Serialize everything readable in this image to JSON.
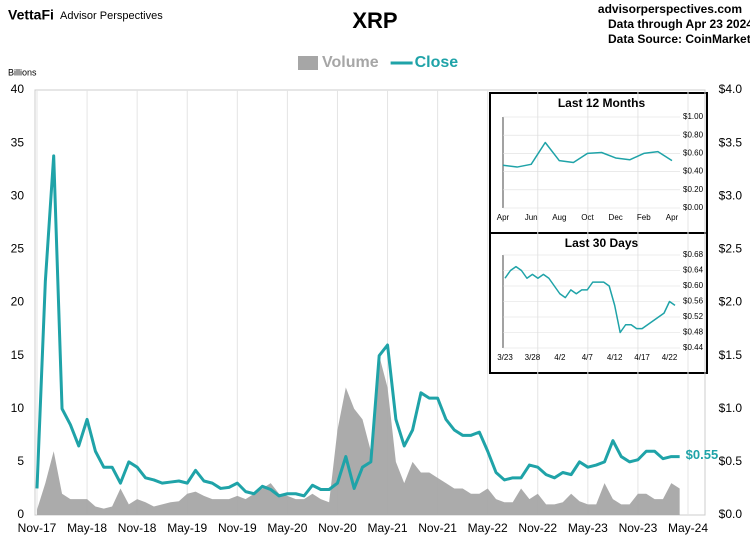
{
  "header": {
    "brand": "VettaFi",
    "brand_sub": "Advisor Perspectives",
    "site": "advisorperspectives.com",
    "data_through": "Data through Apr 23 2024",
    "source": "Data Source: CoinMarketCap"
  },
  "chart_data": [
    {
      "type": "combo",
      "title": "XRP",
      "y_label": "Billions",
      "categories": [
        "Nov-17",
        null,
        null,
        null,
        null,
        null,
        "May-18",
        null,
        null,
        null,
        null,
        null,
        "Nov-18",
        null,
        null,
        null,
        null,
        null,
        "May-19",
        null,
        null,
        null,
        null,
        null,
        "Nov-19",
        null,
        null,
        null,
        null,
        null,
        "May-20",
        null,
        null,
        null,
        null,
        null,
        "Nov-20",
        null,
        null,
        null,
        null,
        null,
        "May-21",
        null,
        null,
        null,
        null,
        null,
        "Nov-21",
        null,
        null,
        null,
        null,
        null,
        "May-22",
        null,
        null,
        null,
        null,
        null,
        "Nov-22",
        null,
        null,
        null,
        null,
        null,
        "May-23",
        null,
        null,
        null,
        null,
        null,
        "Nov-23",
        null,
        null,
        null,
        null,
        null,
        "May-24"
      ],
      "series": [
        {
          "name": "Volume",
          "type": "area",
          "axis": "y",
          "color": "#a6a6a6",
          "values": [
            0.5,
            3,
            6,
            2,
            1.5,
            1.5,
            1.5,
            0.8,
            0.6,
            0.8,
            2.5,
            1.0,
            1.5,
            1.2,
            0.8,
            1.0,
            1.2,
            1.3,
            2.0,
            2.2,
            1.8,
            1.5,
            1.5,
            1.5,
            1.8,
            1.5,
            2.0,
            2.5,
            3.0,
            2.0,
            1.8,
            1.5,
            1.5,
            2.0,
            1.5,
            1.2,
            8,
            12,
            10,
            9,
            6,
            15,
            12,
            5,
            3,
            5,
            4,
            4,
            3.5,
            3,
            2.5,
            2.5,
            2,
            2,
            2.5,
            1.5,
            1.2,
            1.2,
            2.5,
            1.5,
            2,
            1,
            1,
            1.2,
            2,
            1.3,
            1,
            1,
            3,
            1.5,
            1,
            1,
            2,
            2,
            1.5,
            1.5,
            3,
            2.5,
            null
          ]
        },
        {
          "name": "Close",
          "type": "line",
          "axis": "y2",
          "color": "#1fa3a8",
          "values": [
            0.25,
            2.2,
            3.38,
            1.0,
            0.85,
            0.65,
            0.9,
            0.6,
            0.45,
            0.45,
            0.3,
            0.5,
            0.45,
            0.35,
            0.33,
            0.3,
            0.31,
            0.32,
            0.3,
            0.42,
            0.32,
            0.3,
            0.25,
            0.26,
            0.3,
            0.22,
            0.2,
            0.27,
            0.24,
            0.18,
            0.2,
            0.2,
            0.18,
            0.28,
            0.24,
            0.24,
            0.3,
            0.55,
            0.25,
            0.45,
            0.5,
            1.5,
            1.6,
            0.9,
            0.65,
            0.8,
            1.15,
            1.1,
            1.1,
            0.9,
            0.8,
            0.75,
            0.75,
            0.78,
            0.6,
            0.4,
            0.33,
            0.35,
            0.35,
            0.47,
            0.45,
            0.38,
            0.35,
            0.4,
            0.38,
            0.5,
            0.45,
            0.47,
            0.5,
            0.7,
            0.55,
            0.5,
            0.52,
            0.6,
            0.6,
            0.53,
            0.55,
            0.55,
            null
          ],
          "value_labels": [
            null,
            null,
            null,
            null,
            null,
            null,
            null,
            null,
            null,
            null,
            null,
            null,
            null,
            null,
            null,
            null,
            null,
            null,
            null,
            null,
            null,
            null,
            null,
            null,
            null,
            null,
            null,
            null,
            null,
            null,
            null,
            null,
            null,
            null,
            null,
            null,
            null,
            null,
            null,
            null,
            null,
            null,
            null,
            null,
            null,
            null,
            null,
            null,
            null,
            null,
            null,
            null,
            null,
            null,
            null,
            null,
            null,
            null,
            null,
            null,
            null,
            null,
            null,
            null,
            null,
            null,
            null,
            null,
            null,
            null,
            null,
            null,
            null,
            null,
            null,
            null,
            null,
            "$0.55",
            null
          ]
        }
      ],
      "ylim": [
        0,
        40
      ],
      "yticks": [
        0,
        5,
        10,
        15,
        20,
        25,
        30,
        35,
        40
      ],
      "y2lim": [
        0,
        4
      ],
      "y2ticks": [
        {
          "value": 0,
          "label": "$0.0"
        },
        {
          "value": 0.5,
          "label": "$0.5"
        },
        {
          "value": 1,
          "label": "$1.0"
        },
        {
          "value": 1.5,
          "label": "$1.5"
        },
        {
          "value": 2,
          "label": "$2.0"
        },
        {
          "value": 2.5,
          "label": "$2.5"
        },
        {
          "value": 3,
          "label": "$3.0"
        },
        {
          "value": 3.5,
          "label": "$3.5"
        },
        {
          "value": 4,
          "label": "$4.0"
        }
      ],
      "grid": true
    },
    {
      "type": "line",
      "title": "Last 12 Months",
      "categories": [
        "Apr",
        null,
        "Jun",
        null,
        "Aug",
        null,
        "Oct",
        null,
        "Dec",
        null,
        "Feb",
        null,
        "Apr"
      ],
      "series": [
        {
          "name": "Close",
          "color": "#1fa3a8",
          "values": [
            0.47,
            0.45,
            0.48,
            0.72,
            0.52,
            0.5,
            0.6,
            0.61,
            0.55,
            0.53,
            0.6,
            0.62,
            0.52
          ]
        }
      ],
      "ylim": [
        0,
        1
      ],
      "yticks": [
        {
          "value": 0,
          "label": "$0.00"
        },
        {
          "value": 0.2,
          "label": "$0.20"
        },
        {
          "value": 0.4,
          "label": "$0.40"
        },
        {
          "value": 0.6,
          "label": "$0.60"
        },
        {
          "value": 0.8,
          "label": "$0.80"
        },
        {
          "value": 1,
          "label": "$1.00"
        }
      ],
      "grid": true
    },
    {
      "type": "line",
      "title": "Last 30 Days",
      "categories": [
        "3/23",
        null,
        null,
        null,
        null,
        "3/28",
        null,
        null,
        null,
        null,
        "4/2",
        null,
        null,
        null,
        null,
        "4/7",
        null,
        null,
        null,
        null,
        "4/12",
        null,
        null,
        null,
        null,
        "4/17",
        null,
        null,
        null,
        null,
        "4/22",
        null
      ],
      "series": [
        {
          "name": "Close",
          "color": "#1fa3a8",
          "values": [
            0.62,
            0.64,
            0.65,
            0.64,
            0.62,
            0.63,
            0.62,
            0.63,
            0.62,
            0.6,
            0.58,
            0.57,
            0.59,
            0.58,
            0.59,
            0.59,
            0.61,
            0.61,
            0.61,
            0.6,
            0.55,
            0.48,
            0.5,
            0.5,
            0.49,
            0.49,
            0.5,
            0.51,
            0.52,
            0.53,
            0.56,
            0.55
          ]
        }
      ],
      "ylim": [
        0.44,
        0.68
      ],
      "yticks": [
        {
          "value": 0.44,
          "label": "$0.44"
        },
        {
          "value": 0.48,
          "label": "$0.48"
        },
        {
          "value": 0.52,
          "label": "$0.52"
        },
        {
          "value": 0.56,
          "label": "$0.56"
        },
        {
          "value": 0.6,
          "label": "$0.60"
        },
        {
          "value": 0.64,
          "label": "$0.64"
        },
        {
          "value": 0.68,
          "label": "$0.68"
        }
      ],
      "grid": true
    }
  ]
}
